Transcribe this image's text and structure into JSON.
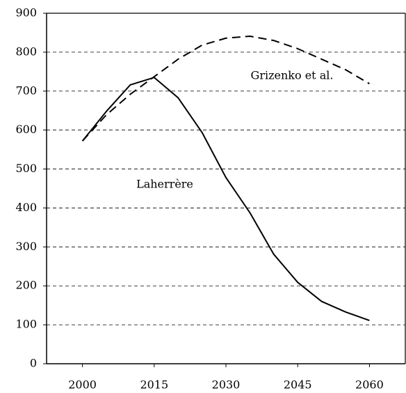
{
  "chart_data": {
    "type": "line",
    "x": [
      2000,
      2005,
      2010,
      2015,
      2020,
      2025,
      2030,
      2035,
      2040,
      2045,
      2050,
      2055,
      2060
    ],
    "series": [
      {
        "name": "Grizenko et al.",
        "color": "#000000",
        "dash": true,
        "values": [
          572,
          639,
          692,
          737,
          782,
          818,
          836,
          841,
          830,
          809,
          782,
          755,
          719
        ]
      },
      {
        "name": "Laherrère",
        "color": "#000000",
        "dash": false,
        "values": [
          572,
          648,
          716,
          735,
          683,
          594,
          478,
          388,
          281,
          209,
          160,
          133,
          111
        ]
      }
    ],
    "xlim": [
      1992.5,
      2067.5
    ],
    "xticks": [
      2000,
      2015,
      2030,
      2045,
      2060
    ],
    "ylim": [
      0,
      900
    ],
    "yticks": [
      0,
      100,
      200,
      300,
      400,
      500,
      600,
      700,
      800,
      900
    ],
    "grid": true
  }
}
